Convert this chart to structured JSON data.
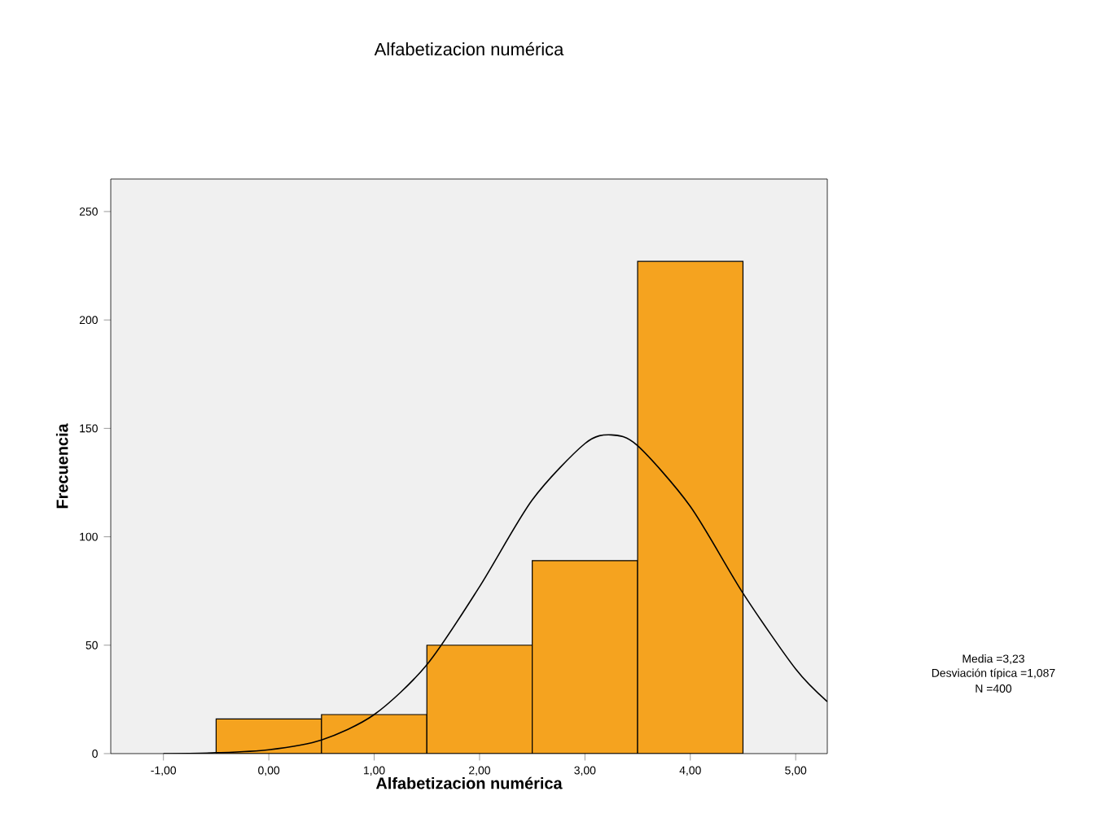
{
  "chart_data": {
    "type": "histogram",
    "title": "Alfabetizacion numérica",
    "xlabel": "Alfabetizacion numérica",
    "ylabel": "Frecuencia",
    "xlim": [
      -1.5,
      5.3
    ],
    "ylim": [
      0,
      265
    ],
    "xticks": [
      {
        "value": -1,
        "label": "-1,00"
      },
      {
        "value": 0,
        "label": "0,00"
      },
      {
        "value": 1,
        "label": "1,00"
      },
      {
        "value": 2,
        "label": "2,00"
      },
      {
        "value": 3,
        "label": "3,00"
      },
      {
        "value": 4,
        "label": "4,00"
      },
      {
        "value": 5,
        "label": "5,00"
      }
    ],
    "yticks": [
      0,
      50,
      100,
      150,
      200,
      250
    ],
    "grid": false,
    "series": [
      {
        "color": "#f5a31f",
        "bins": [
          -0.5,
          0.5,
          1.5,
          2.5,
          3.5,
          4.5
        ],
        "values": [
          16,
          18,
          50,
          89,
          227
        ]
      },
      {
        "type": "line",
        "color": "#000000",
        "x": [
          -1,
          -0.5,
          0,
          0.5,
          1,
          1.5,
          2,
          2.5,
          3,
          3.25,
          3.5,
          4,
          4.5,
          5,
          5.3
        ],
        "values": [
          0,
          0.4,
          1.8,
          6.3,
          18,
          41,
          77,
          117,
          143,
          147,
          142,
          114,
          74,
          39,
          24
        ]
      }
    ],
    "annotations": [
      "Media =3,23",
      "Desviación típica =1,087",
      "N =400"
    ]
  }
}
